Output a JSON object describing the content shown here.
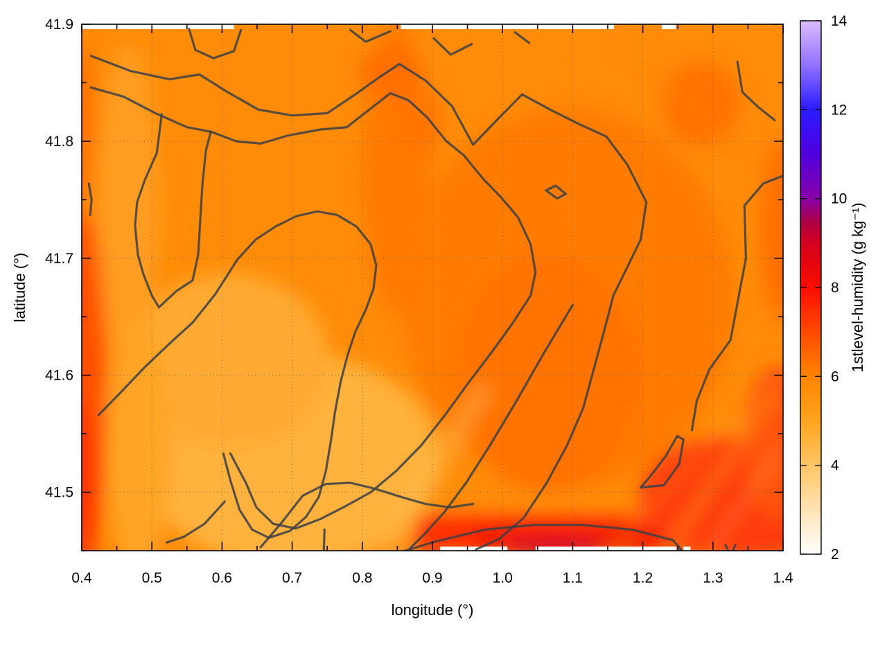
{
  "chart_data": {
    "type": "heatmap",
    "title": "",
    "xlabel": "longitude (°)",
    "ylabel": "latitude (°)",
    "colorbar_label": "1stlevel-humidity (g kg⁻¹)",
    "xlim": [
      0.4,
      1.4
    ],
    "ylim": [
      41.45,
      41.9
    ],
    "zlim": [
      2,
      14
    ],
    "grid_on": true,
    "x_ticks": [
      0.4,
      0.5,
      0.6,
      0.7,
      0.8,
      0.9,
      1.0,
      1.1,
      1.2,
      1.3,
      1.4
    ],
    "x_tick_labels": [
      "0.4",
      "0.5",
      "0.6",
      "0.7",
      "0.8",
      "0.9",
      "1.0",
      "1.1",
      "1.2",
      "1.3",
      "1.4"
    ],
    "x_minor_ticks": [
      0.45,
      0.55,
      0.65,
      0.75,
      0.85,
      0.95,
      1.05,
      1.15,
      1.25,
      1.35
    ],
    "y_ticks": [
      41.5,
      41.6,
      41.7,
      41.8,
      41.9
    ],
    "y_tick_labels": [
      "41.5",
      "41.6",
      "41.7",
      "41.8",
      "41.9"
    ],
    "y_minor_ticks": [
      41.45,
      41.55,
      41.65,
      41.75,
      41.85
    ],
    "colorbar_ticks": [
      2,
      4,
      6,
      8,
      10,
      12,
      14
    ],
    "colorbar_tick_labels": [
      "2",
      "4",
      "6",
      "8",
      "10",
      "12",
      "14"
    ],
    "palette_stops": [
      {
        "value": 2,
        "color": "#ffffff"
      },
      {
        "value": 3,
        "color": "#ffe3b4"
      },
      {
        "value": 4,
        "color": "#ffc566"
      },
      {
        "value": 5,
        "color": "#ffa41e"
      },
      {
        "value": 6,
        "color": "#ff8400"
      },
      {
        "value": 7,
        "color": "#ff4a00"
      },
      {
        "value": 8,
        "color": "#fa0d00"
      },
      {
        "value": 9,
        "color": "#d4001e"
      },
      {
        "value": 9.5,
        "color": "#aa0048"
      },
      {
        "value": 10,
        "color": "#8800a8"
      },
      {
        "value": 11,
        "color": "#5000de"
      },
      {
        "value": 12,
        "color": "#2b1aff"
      },
      {
        "value": 13,
        "color": "#9171ff"
      },
      {
        "value": 14,
        "color": "#dcbcff"
      }
    ],
    "contour_level_estimate_g_per_kg": 6,
    "grid_field": {
      "lon_values": [
        0.4,
        0.5,
        0.6,
        0.7,
        0.8,
        0.9,
        1.0,
        1.1,
        1.2,
        1.3,
        1.4
      ],
      "lat_values": [
        41.9,
        41.85,
        41.8,
        41.75,
        41.7,
        41.65,
        41.6,
        41.55,
        41.5,
        41.45
      ],
      "humidity_g_per_kg": [
        [
          5.9,
          5.9,
          6.0,
          6.2,
          6.1,
          6.0,
          6.0,
          6.0,
          6.0,
          6.0,
          5.9
        ],
        [
          5.8,
          5.9,
          6.0,
          6.3,
          6.2,
          6.2,
          6.1,
          6.0,
          6.0,
          6.1,
          6.0
        ],
        [
          5.7,
          5.6,
          5.9,
          6.4,
          6.3,
          6.2,
          6.1,
          6.1,
          6.1,
          6.1,
          6.2
        ],
        [
          5.9,
          5.5,
          5.7,
          6.4,
          6.4,
          6.3,
          6.2,
          6.1,
          6.1,
          6.2,
          6.3
        ],
        [
          6.2,
          5.5,
          5.4,
          6.2,
          6.4,
          6.4,
          6.3,
          6.2,
          6.1,
          6.2,
          6.4
        ],
        [
          6.5,
          5.4,
          5.2,
          5.6,
          6.3,
          6.5,
          6.4,
          6.3,
          6.2,
          6.3,
          6.5
        ],
        [
          6.7,
          5.3,
          5.0,
          5.3,
          5.7,
          6.4,
          6.5,
          6.4,
          6.3,
          6.4,
          6.6
        ],
        [
          6.8,
          5.2,
          4.9,
          5.0,
          5.4,
          5.9,
          6.5,
          6.5,
          6.4,
          6.6,
          6.9
        ],
        [
          6.8,
          5.4,
          5.0,
          4.9,
          5.2,
          5.6,
          6.3,
          6.7,
          6.9,
          7.1,
          7.3
        ],
        [
          6.7,
          5.8,
          5.4,
          5.3,
          5.6,
          6.2,
          7.3,
          8.0,
          7.8,
          8.1,
          7.5
        ]
      ]
    },
    "contours": [
      {
        "name": "upper-long-line-with-southwest-hook",
        "points": [
          [
            0.413,
            41.873
          ],
          [
            0.47,
            41.86
          ],
          [
            0.525,
            41.853
          ],
          [
            0.568,
            41.857
          ],
          [
            0.608,
            41.842
          ],
          [
            0.652,
            41.827
          ],
          [
            0.7,
            41.822
          ],
          [
            0.75,
            41.824
          ],
          [
            0.79,
            41.84
          ],
          [
            0.825,
            41.855
          ],
          [
            0.853,
            41.866
          ],
          [
            0.89,
            41.852
          ],
          [
            0.928,
            41.83
          ],
          [
            0.958,
            41.797
          ],
          [
            0.995,
            41.82
          ],
          [
            1.028,
            41.84
          ],
          [
            1.068,
            41.827
          ],
          [
            1.108,
            41.815
          ],
          [
            1.148,
            41.804
          ],
          [
            1.178,
            41.78
          ],
          [
            1.205,
            41.748
          ],
          [
            1.197,
            41.716
          ],
          [
            1.18,
            41.695
          ],
          [
            1.158,
            41.668
          ],
          [
            1.145,
            41.638
          ],
          [
            1.13,
            41.605
          ],
          [
            1.115,
            41.572
          ],
          [
            1.092,
            41.54
          ],
          [
            1.063,
            41.508
          ],
          [
            1.03,
            41.478
          ],
          [
            0.995,
            41.46
          ],
          [
            0.962,
            41.451
          ]
        ]
      },
      {
        "name": "second-long-line",
        "points": [
          [
            0.413,
            41.846
          ],
          [
            0.46,
            41.838
          ],
          [
            0.505,
            41.824
          ],
          [
            0.55,
            41.812
          ],
          [
            0.585,
            41.808
          ],
          [
            0.62,
            41.8
          ],
          [
            0.655,
            41.798
          ],
          [
            0.695,
            41.805
          ],
          [
            0.74,
            41.81
          ],
          [
            0.778,
            41.812
          ],
          [
            0.812,
            41.828
          ],
          [
            0.84,
            41.841
          ],
          [
            0.866,
            41.835
          ],
          [
            0.893,
            41.82
          ],
          [
            0.92,
            41.8
          ],
          [
            0.945,
            41.788
          ],
          [
            0.972,
            41.768
          ],
          [
            0.998,
            41.752
          ],
          [
            1.022,
            41.735
          ],
          [
            1.04,
            41.712
          ],
          [
            1.047,
            41.688
          ],
          [
            1.04,
            41.668
          ],
          [
            1.015,
            41.645
          ],
          [
            0.985,
            41.62
          ],
          [
            0.952,
            41.594
          ],
          [
            0.918,
            41.566
          ],
          [
            0.884,
            41.54
          ],
          [
            0.848,
            41.518
          ],
          [
            0.812,
            41.5
          ],
          [
            0.776,
            41.488
          ],
          [
            0.74,
            41.477
          ],
          [
            0.705,
            41.469
          ],
          [
            0.673,
            41.473
          ],
          [
            0.649,
            41.487
          ],
          [
            0.634,
            41.508
          ],
          [
            0.612,
            41.533
          ]
        ]
      },
      {
        "name": "west-hairpin",
        "points": [
          [
            0.514,
            41.823
          ],
          [
            0.507,
            41.79
          ],
          [
            0.49,
            41.767
          ],
          [
            0.479,
            41.748
          ],
          [
            0.476,
            41.728
          ],
          [
            0.48,
            41.703
          ],
          [
            0.488,
            41.686
          ],
          [
            0.5,
            41.668
          ],
          [
            0.51,
            41.658
          ],
          [
            0.535,
            41.672
          ],
          [
            0.558,
            41.681
          ],
          [
            0.566,
            41.703
          ],
          [
            0.569,
            41.733
          ],
          [
            0.572,
            41.763
          ],
          [
            0.577,
            41.792
          ],
          [
            0.584,
            41.808
          ]
        ]
      },
      {
        "name": "center-ring-with-tails",
        "points": [
          [
            0.424,
            41.566
          ],
          [
            0.455,
            41.585
          ],
          [
            0.49,
            41.607
          ],
          [
            0.525,
            41.627
          ],
          [
            0.558,
            41.645
          ],
          [
            0.59,
            41.669
          ],
          [
            0.622,
            41.699
          ],
          [
            0.648,
            41.716
          ],
          [
            0.676,
            41.727
          ],
          [
            0.706,
            41.736
          ],
          [
            0.736,
            41.74
          ],
          [
            0.764,
            41.737
          ],
          [
            0.792,
            41.727
          ],
          [
            0.812,
            41.712
          ],
          [
            0.82,
            41.694
          ],
          [
            0.816,
            41.674
          ],
          [
            0.805,
            41.656
          ],
          [
            0.79,
            41.637
          ],
          [
            0.779,
            41.617
          ],
          [
            0.769,
            41.594
          ],
          [
            0.761,
            41.568
          ],
          [
            0.755,
            41.543
          ],
          [
            0.748,
            41.518
          ],
          [
            0.738,
            41.496
          ],
          [
            0.72,
            41.479
          ],
          [
            0.697,
            41.467
          ],
          [
            0.667,
            41.461
          ],
          [
            0.643,
            41.468
          ],
          [
            0.625,
            41.485
          ],
          [
            0.612,
            41.51
          ],
          [
            0.602,
            41.533
          ]
        ]
      },
      {
        "name": "southwest-short-line",
        "points": [
          [
            0.604,
            41.492
          ],
          [
            0.575,
            41.473
          ],
          [
            0.546,
            41.462
          ],
          [
            0.521,
            41.457
          ]
        ]
      },
      {
        "name": "bottom-center-rising-line",
        "points": [
          [
            0.655,
            41.453
          ],
          [
            0.685,
            41.474
          ],
          [
            0.715,
            41.497
          ],
          [
            0.748,
            41.507
          ],
          [
            0.783,
            41.508
          ],
          [
            0.818,
            41.503
          ],
          [
            0.855,
            41.496
          ],
          [
            0.89,
            41.49
          ],
          [
            0.925,
            41.487
          ],
          [
            0.958,
            41.49
          ]
        ]
      },
      {
        "name": "southeast-diagonal",
        "points": [
          [
            1.1,
            41.66
          ],
          [
            1.06,
            41.62
          ],
          [
            1.02,
            41.578
          ],
          [
            0.982,
            41.54
          ],
          [
            0.948,
            41.508
          ],
          [
            0.917,
            41.483
          ],
          [
            0.89,
            41.465
          ],
          [
            0.868,
            41.452
          ]
        ]
      },
      {
        "name": "bottom-right-trapezoid",
        "points": [
          [
            0.845,
            41.447
          ],
          [
            0.905,
            41.458
          ],
          [
            0.975,
            41.468
          ],
          [
            1.045,
            41.472
          ],
          [
            1.115,
            41.472
          ],
          [
            1.185,
            41.468
          ],
          [
            1.243,
            41.459
          ],
          [
            1.263,
            41.445
          ]
        ]
      },
      {
        "name": "southeast-pennant-loop",
        "points": [
          [
            1.197,
            41.504
          ],
          [
            1.23,
            41.506
          ],
          [
            1.252,
            41.524
          ],
          [
            1.258,
            41.545
          ],
          [
            1.249,
            41.548
          ],
          [
            1.233,
            41.531
          ],
          [
            1.21,
            41.513
          ],
          [
            1.197,
            41.504
          ]
        ]
      },
      {
        "name": "east-edge-line",
        "points": [
          [
            1.398,
            41.77
          ],
          [
            1.372,
            41.764
          ],
          [
            1.345,
            41.745
          ],
          [
            1.347,
            41.7
          ],
          [
            1.325,
            41.63
          ],
          [
            1.295,
            41.605
          ],
          [
            1.277,
            41.578
          ],
          [
            1.27,
            41.553
          ]
        ]
      },
      {
        "name": "northeast-corner-segment",
        "points": [
          [
            1.335,
            41.868
          ],
          [
            1.342,
            41.842
          ],
          [
            1.365,
            41.829
          ],
          [
            1.388,
            41.818
          ]
        ]
      },
      {
        "name": "top-edge-u-segment",
        "points": [
          [
            0.553,
            41.896
          ],
          [
            0.562,
            41.878
          ],
          [
            0.588,
            41.871
          ],
          [
            0.617,
            41.877
          ],
          [
            0.627,
            41.895
          ]
        ]
      },
      {
        "name": "top-edge-v-segment-1",
        "points": [
          [
            0.783,
            41.895
          ],
          [
            0.805,
            41.885
          ],
          [
            0.84,
            41.894
          ]
        ]
      },
      {
        "name": "top-edge-v-segment-2",
        "points": [
          [
            0.902,
            41.888
          ],
          [
            0.926,
            41.874
          ],
          [
            0.956,
            41.883
          ]
        ]
      },
      {
        "name": "top-edge-tick-segment",
        "points": [
          [
            1.018,
            41.893
          ],
          [
            1.038,
            41.884
          ]
        ]
      },
      {
        "name": "west-edge-small-arc",
        "points": [
          [
            0.41,
            41.764
          ],
          [
            0.414,
            41.75
          ],
          [
            0.412,
            41.737
          ]
        ]
      },
      {
        "name": "small-diamond-loop",
        "points": [
          [
            1.062,
            41.758
          ],
          [
            1.078,
            41.751
          ],
          [
            1.09,
            41.755
          ],
          [
            1.076,
            41.762
          ],
          [
            1.062,
            41.758
          ]
        ]
      },
      {
        "name": "bottom-short-vertical",
        "points": [
          [
            0.746,
            41.468
          ],
          [
            0.745,
            41.445
          ]
        ]
      },
      {
        "name": "bottom-small-caret",
        "points": [
          [
            1.318,
            41.455
          ],
          [
            1.325,
            41.445
          ],
          [
            1.332,
            41.455
          ]
        ]
      }
    ],
    "missing_data_gaps": [
      {
        "edge": "top",
        "lon_from": 0.4,
        "lon_to": 0.617
      },
      {
        "edge": "top",
        "lon_from": 0.855,
        "lon_to": 1.159
      },
      {
        "edge": "top",
        "lon_from": 1.227,
        "lon_to": 1.247
      },
      {
        "edge": "bottom",
        "lon_from": 0.911,
        "lon_to": 1.007
      },
      {
        "edge": "bottom",
        "lon_from": 1.047,
        "lon_to": 1.248
      },
      {
        "edge": "bottom",
        "lon_from": 1.258,
        "lon_to": 1.268
      }
    ],
    "colors": {
      "base_field": "#ff8c08",
      "contour_line": "#3a4046",
      "frame": "#000000",
      "grid_dots": "#555045"
    }
  }
}
